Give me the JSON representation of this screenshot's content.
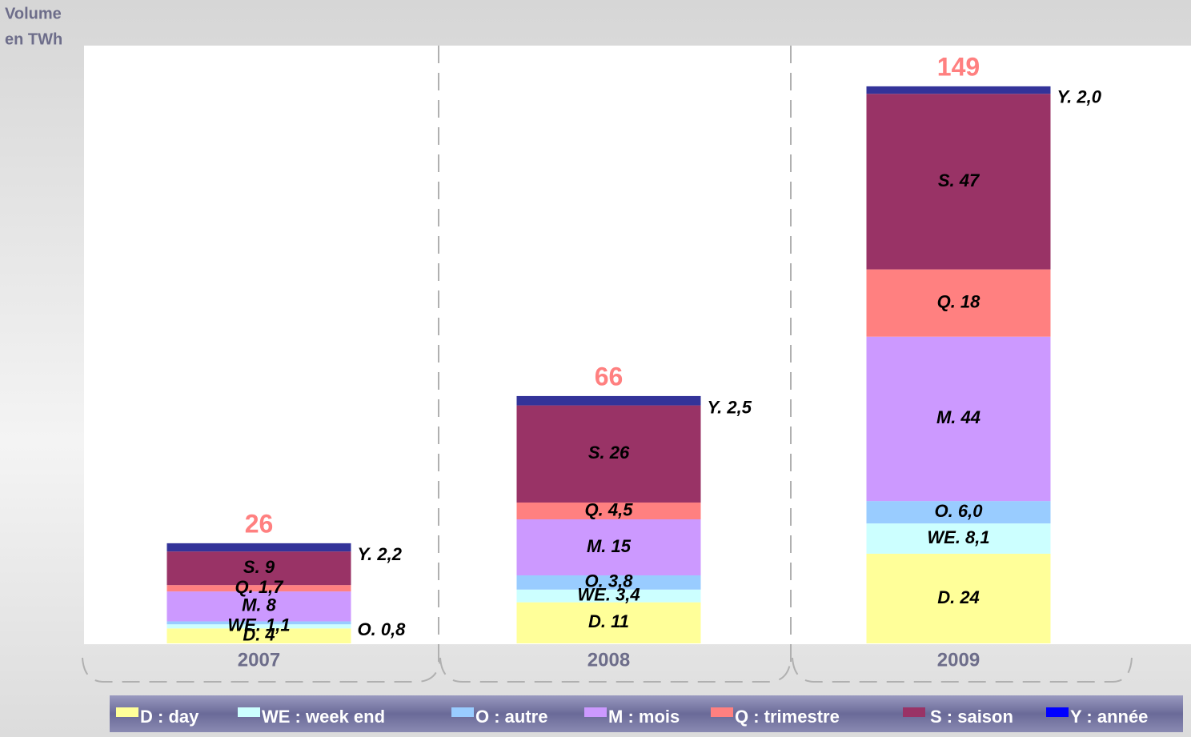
{
  "chart_data": {
    "type": "stacked_bar",
    "y_label": [
      "Volume",
      "en TWh"
    ],
    "categories": [
      "2007",
      "2008",
      "2009"
    ],
    "totals": [
      26,
      66,
      149
    ],
    "ylim": [
      0,
      160
    ],
    "series": [
      {
        "name": "D : day",
        "color": "#ffff99",
        "values": [
          4,
          11,
          24
        ],
        "value_labels": [
          "D.  4",
          "D.  11",
          "D.  24"
        ]
      },
      {
        "name": "WE : week end",
        "color": "#ccffff",
        "values": [
          1.1,
          3.4,
          8.1
        ],
        "value_labels": [
          "WE.  1,1",
          "WE.  3,4",
          "WE.  8,1"
        ]
      },
      {
        "name": "O : autre",
        "color": "#99ccff",
        "values": [
          0.8,
          3.8,
          6.0
        ],
        "value_labels": [
          "O.  0,8",
          "O.  3,8",
          "O.  6,0"
        ]
      },
      {
        "name": "M : mois",
        "color": "#cc99ff",
        "values": [
          8,
          15,
          44
        ],
        "value_labels": [
          "M.  8",
          "M.  15",
          "M.  44"
        ]
      },
      {
        "name": "Q : trimestre",
        "color": "#ff8080",
        "values": [
          1.7,
          4.5,
          18
        ],
        "value_labels": [
          "Q.  1,7",
          "Q.  4,5",
          "Q.  18"
        ]
      },
      {
        "name": "S : saison",
        "color": "#993366",
        "values": [
          9,
          26,
          47
        ],
        "value_labels": [
          "S.  9",
          "S.  26",
          "S.  47"
        ]
      },
      {
        "name": "Y : année",
        "color": "#333399",
        "values": [
          2.2,
          2.5,
          2.0
        ],
        "value_labels": [
          "Y.  2,2",
          "Y.  2,5",
          "Y.  2,0"
        ]
      }
    ]
  }
}
